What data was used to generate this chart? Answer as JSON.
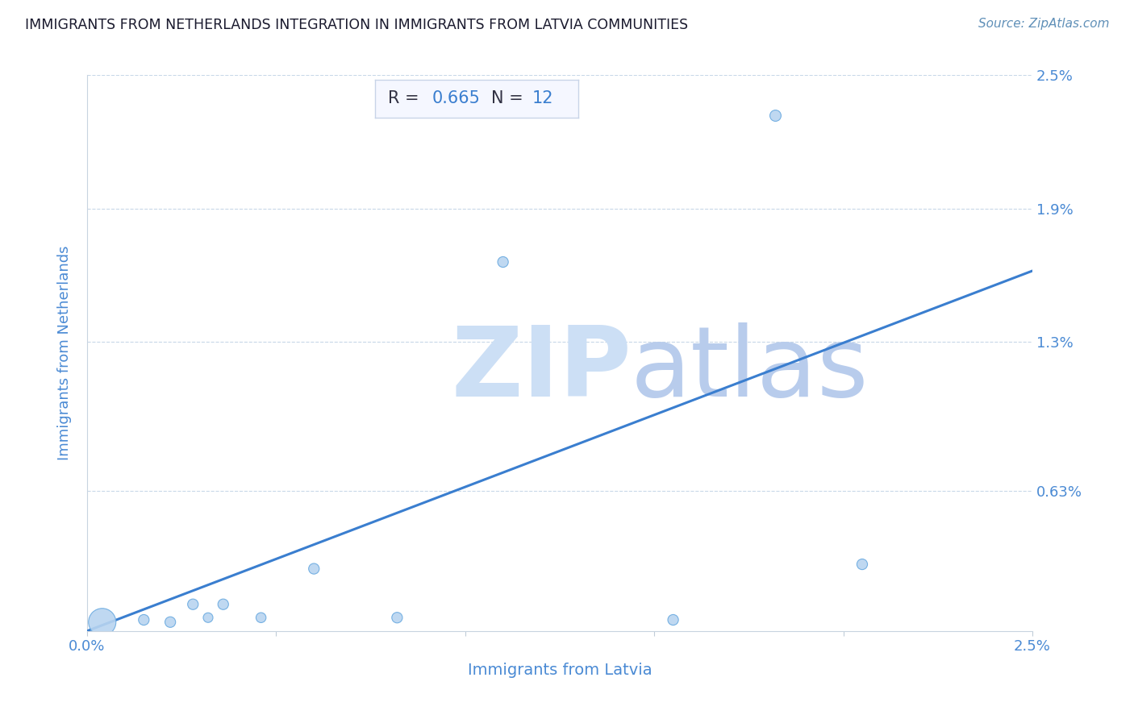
{
  "title": "IMMIGRANTS FROM NETHERLANDS INTEGRATION IN IMMIGRANTS FROM LATVIA COMMUNITIES",
  "source": "Source: ZipAtlas.com",
  "xlabel": "Immigrants from Latvia",
  "ylabel": "Immigrants from Netherlands",
  "R": 0.665,
  "N": 12,
  "x_min": 0.0,
  "x_max": 2.5,
  "y_min": 0.0,
  "y_max": 2.5,
  "x_ticks": [
    0.0,
    0.5,
    1.0,
    1.5,
    2.0,
    2.5
  ],
  "x_tick_labels": [
    "0.0%",
    "",
    "",
    "",
    "",
    "2.5%"
  ],
  "y_ticks": [
    0.0,
    0.63,
    1.3,
    1.9,
    2.5
  ],
  "y_tick_labels": [
    "",
    "0.63%",
    "1.3%",
    "1.9%",
    "2.5%"
  ],
  "scatter_x": [
    0.04,
    0.15,
    0.22,
    0.28,
    0.32,
    0.36,
    0.46,
    0.6,
    0.82,
    1.1,
    1.55,
    2.05
  ],
  "scatter_y": [
    0.04,
    0.05,
    0.04,
    0.12,
    0.06,
    0.12,
    0.06,
    0.28,
    0.06,
    1.66,
    0.05,
    0.3
  ],
  "scatter_sizes": [
    600,
    90,
    90,
    90,
    75,
    90,
    80,
    90,
    90,
    90,
    90,
    90
  ],
  "outlier_x": [
    1.82
  ],
  "outlier_y": [
    2.32
  ],
  "outlier_size": [
    100
  ],
  "scatter_color": "#b8d4f0",
  "scatter_edge_color": "#6aaae0",
  "line_color": "#3a7ecf",
  "bg_color": "#ffffff",
  "grid_color": "#c8d8e8",
  "title_color": "#1a1a2e",
  "axis_label_color": "#4a8ad4",
  "tick_label_color": "#4a8ad4",
  "watermark_zip_color": "#ccdff5",
  "watermark_atlas_color": "#b8ccec",
  "annotation_box_color": "#f5f7ff",
  "annotation_box_edge": "#c8d4e8",
  "line_start_x": 0.0,
  "line_start_y": 0.0,
  "line_end_x": 2.5,
  "line_end_y": 1.62
}
